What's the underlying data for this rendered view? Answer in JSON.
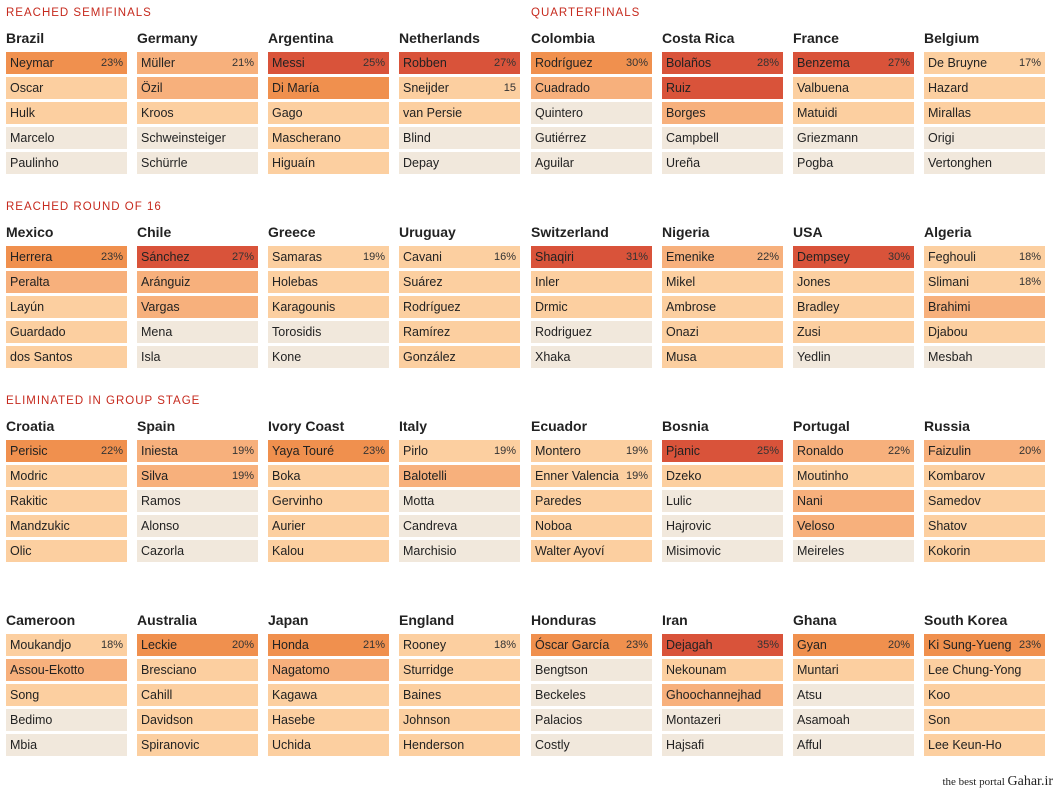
{
  "colors": {
    "h5": "#d9533a",
    "h4": "#f0904e",
    "h3": "#f7b07c",
    "h2": "#fccfa0",
    "h1": "#f1e8dc"
  },
  "sections": [
    {
      "label": "REACHED SEMIFINALS"
    },
    {
      "label": "QUARTERFINALS"
    },
    {
      "label": "REACHED ROUND OF 16"
    },
    {
      "label": "ELIMINATED IN GROUP STAGE"
    }
  ],
  "rows": [
    [
      {
        "name": "Brazil",
        "players": [
          {
            "name": "Neymar",
            "pct": "23%",
            "heat": "h4"
          },
          {
            "name": "Oscar",
            "pct": "",
            "heat": "h2"
          },
          {
            "name": "Hulk",
            "pct": "",
            "heat": "h2"
          },
          {
            "name": "Marcelo",
            "pct": "",
            "heat": "h1"
          },
          {
            "name": "Paulinho",
            "pct": "",
            "heat": "h1"
          }
        ]
      },
      {
        "name": "Germany",
        "players": [
          {
            "name": "Müller",
            "pct": "21%",
            "heat": "h3"
          },
          {
            "name": "Özil",
            "pct": "",
            "heat": "h3"
          },
          {
            "name": "Kroos",
            "pct": "",
            "heat": "h2"
          },
          {
            "name": "Schweinsteiger",
            "pct": "",
            "heat": "h1"
          },
          {
            "name": "Schürrle",
            "pct": "",
            "heat": "h1"
          }
        ]
      },
      {
        "name": "Argentina",
        "players": [
          {
            "name": "Messi",
            "pct": "25%",
            "heat": "h5"
          },
          {
            "name": "Di María",
            "pct": "",
            "heat": "h4"
          },
          {
            "name": "Gago",
            "pct": "",
            "heat": "h2"
          },
          {
            "name": "Mascherano",
            "pct": "",
            "heat": "h2"
          },
          {
            "name": "Higuaín",
            "pct": "",
            "heat": "h2"
          }
        ]
      },
      {
        "name": "Netherlands",
        "players": [
          {
            "name": "Robben",
            "pct": "27%",
            "heat": "h5"
          },
          {
            "name": "Sneijder",
            "pct": "15",
            "heat": "h2"
          },
          {
            "name": "van Persie",
            "pct": "",
            "heat": "h2"
          },
          {
            "name": "Blind",
            "pct": "",
            "heat": "h1"
          },
          {
            "name": "Depay",
            "pct": "",
            "heat": "h1"
          }
        ]
      },
      {
        "name": "Colombia",
        "players": [
          {
            "name": "Rodríguez",
            "pct": "30%",
            "heat": "h4"
          },
          {
            "name": "Cuadrado",
            "pct": "",
            "heat": "h3"
          },
          {
            "name": "Quintero",
            "pct": "",
            "heat": "h1"
          },
          {
            "name": "Gutiérrez",
            "pct": "",
            "heat": "h1"
          },
          {
            "name": "Aguilar",
            "pct": "",
            "heat": "h1"
          }
        ]
      },
      {
        "name": "Costa Rica",
        "players": [
          {
            "name": "Bolaños",
            "pct": "28%",
            "heat": "h5"
          },
          {
            "name": "Ruiz",
            "pct": "",
            "heat": "h5"
          },
          {
            "name": "Borges",
            "pct": "",
            "heat": "h3"
          },
          {
            "name": "Campbell",
            "pct": "",
            "heat": "h1"
          },
          {
            "name": "Ureña",
            "pct": "",
            "heat": "h1"
          }
        ]
      },
      {
        "name": "France",
        "players": [
          {
            "name": "Benzema",
            "pct": "27%",
            "heat": "h5"
          },
          {
            "name": "Valbuena",
            "pct": "",
            "heat": "h2"
          },
          {
            "name": "Matuidi",
            "pct": "",
            "heat": "h2"
          },
          {
            "name": "Griezmann",
            "pct": "",
            "heat": "h1"
          },
          {
            "name": "Pogba",
            "pct": "",
            "heat": "h1"
          }
        ]
      },
      {
        "name": "Belgium",
        "players": [
          {
            "name": "De Bruyne",
            "pct": "17%",
            "heat": "h2"
          },
          {
            "name": "Hazard",
            "pct": "",
            "heat": "h2"
          },
          {
            "name": "Mirallas",
            "pct": "",
            "heat": "h2"
          },
          {
            "name": "Origi",
            "pct": "",
            "heat": "h1"
          },
          {
            "name": "Vertonghen",
            "pct": "",
            "heat": "h1"
          }
        ]
      }
    ],
    [
      {
        "name": "Mexico",
        "players": [
          {
            "name": "Herrera",
            "pct": "23%",
            "heat": "h4"
          },
          {
            "name": "Peralta",
            "pct": "",
            "heat": "h3"
          },
          {
            "name": "Layún",
            "pct": "",
            "heat": "h2"
          },
          {
            "name": "Guardado",
            "pct": "",
            "heat": "h2"
          },
          {
            "name": "dos Santos",
            "pct": "",
            "heat": "h2"
          }
        ]
      },
      {
        "name": "Chile",
        "players": [
          {
            "name": "Sánchez",
            "pct": "27%",
            "heat": "h5"
          },
          {
            "name": "Aránguiz",
            "pct": "",
            "heat": "h3"
          },
          {
            "name": "Vargas",
            "pct": "",
            "heat": "h3"
          },
          {
            "name": "Mena",
            "pct": "",
            "heat": "h1"
          },
          {
            "name": "Isla",
            "pct": "",
            "heat": "h1"
          }
        ]
      },
      {
        "name": "Greece",
        "players": [
          {
            "name": "Samaras",
            "pct": "19%",
            "heat": "h2"
          },
          {
            "name": "Holebas",
            "pct": "",
            "heat": "h2"
          },
          {
            "name": "Karagounis",
            "pct": "",
            "heat": "h2"
          },
          {
            "name": "Torosidis",
            "pct": "",
            "heat": "h1"
          },
          {
            "name": "Kone",
            "pct": "",
            "heat": "h1"
          }
        ]
      },
      {
        "name": "Uruguay",
        "players": [
          {
            "name": "Cavani",
            "pct": "16%",
            "heat": "h2"
          },
          {
            "name": "Suárez",
            "pct": "",
            "heat": "h2"
          },
          {
            "name": "Rodríguez",
            "pct": "",
            "heat": "h2"
          },
          {
            "name": "Ramírez",
            "pct": "",
            "heat": "h2"
          },
          {
            "name": "González",
            "pct": "",
            "heat": "h2"
          }
        ]
      },
      {
        "name": "Switzerland",
        "players": [
          {
            "name": "Shaqiri",
            "pct": "31%",
            "heat": "h5"
          },
          {
            "name": "Inler",
            "pct": "",
            "heat": "h2"
          },
          {
            "name": "Drmic",
            "pct": "",
            "heat": "h2"
          },
          {
            "name": "Rodriguez",
            "pct": "",
            "heat": "h1"
          },
          {
            "name": "Xhaka",
            "pct": "",
            "heat": "h1"
          }
        ]
      },
      {
        "name": "Nigeria",
        "players": [
          {
            "name": "Emenike",
            "pct": "22%",
            "heat": "h3"
          },
          {
            "name": "Mikel",
            "pct": "",
            "heat": "h2"
          },
          {
            "name": "Ambrose",
            "pct": "",
            "heat": "h2"
          },
          {
            "name": "Onazi",
            "pct": "",
            "heat": "h2"
          },
          {
            "name": "Musa",
            "pct": "",
            "heat": "h2"
          }
        ]
      },
      {
        "name": "USA",
        "players": [
          {
            "name": "Dempsey",
            "pct": "30%",
            "heat": "h5"
          },
          {
            "name": "Jones",
            "pct": "",
            "heat": "h2"
          },
          {
            "name": "Bradley",
            "pct": "",
            "heat": "h2"
          },
          {
            "name": "Zusi",
            "pct": "",
            "heat": "h2"
          },
          {
            "name": "Yedlin",
            "pct": "",
            "heat": "h1"
          }
        ]
      },
      {
        "name": "Algeria",
        "players": [
          {
            "name": "Feghouli",
            "pct": "18%",
            "heat": "h2"
          },
          {
            "name": "Slimani",
            "pct": "18%",
            "heat": "h2"
          },
          {
            "name": "Brahimi",
            "pct": "",
            "heat": "h3"
          },
          {
            "name": "Djabou",
            "pct": "",
            "heat": "h2"
          },
          {
            "name": "Mesbah",
            "pct": "",
            "heat": "h1"
          }
        ]
      }
    ],
    [
      {
        "name": "Croatia",
        "players": [
          {
            "name": "Perisic",
            "pct": "22%",
            "heat": "h4"
          },
          {
            "name": "Modric",
            "pct": "",
            "heat": "h2"
          },
          {
            "name": "Rakitic",
            "pct": "",
            "heat": "h2"
          },
          {
            "name": "Mandzukic",
            "pct": "",
            "heat": "h2"
          },
          {
            "name": "Olic",
            "pct": "",
            "heat": "h2"
          }
        ]
      },
      {
        "name": "Spain",
        "players": [
          {
            "name": "Iniesta",
            "pct": "19%",
            "heat": "h3"
          },
          {
            "name": "Silva",
            "pct": "19%",
            "heat": "h3"
          },
          {
            "name": "Ramos",
            "pct": "",
            "heat": "h1"
          },
          {
            "name": "Alonso",
            "pct": "",
            "heat": "h1"
          },
          {
            "name": "Cazorla",
            "pct": "",
            "heat": "h1"
          }
        ]
      },
      {
        "name": "Ivory Coast",
        "players": [
          {
            "name": "Yaya Touré",
            "pct": "23%",
            "heat": "h4"
          },
          {
            "name": "Boka",
            "pct": "",
            "heat": "h2"
          },
          {
            "name": "Gervinho",
            "pct": "",
            "heat": "h2"
          },
          {
            "name": "Aurier",
            "pct": "",
            "heat": "h2"
          },
          {
            "name": "Kalou",
            "pct": "",
            "heat": "h2"
          }
        ]
      },
      {
        "name": "Italy",
        "players": [
          {
            "name": "Pirlo",
            "pct": "19%",
            "heat": "h2"
          },
          {
            "name": "Balotelli",
            "pct": "",
            "heat": "h3"
          },
          {
            "name": "Motta",
            "pct": "",
            "heat": "h1"
          },
          {
            "name": "Candreva",
            "pct": "",
            "heat": "h1"
          },
          {
            "name": "Marchisio",
            "pct": "",
            "heat": "h1"
          }
        ]
      },
      {
        "name": "Ecuador",
        "players": [
          {
            "name": "Montero",
            "pct": "19%",
            "heat": "h2"
          },
          {
            "name": "Enner Valencia",
            "pct": "19%",
            "heat": "h2"
          },
          {
            "name": "Paredes",
            "pct": "",
            "heat": "h2"
          },
          {
            "name": "Noboa",
            "pct": "",
            "heat": "h2"
          },
          {
            "name": "Walter Ayoví",
            "pct": "",
            "heat": "h2"
          }
        ]
      },
      {
        "name": "Bosnia",
        "players": [
          {
            "name": "Pjanic",
            "pct": "25%",
            "heat": "h5"
          },
          {
            "name": "Dzeko",
            "pct": "",
            "heat": "h2"
          },
          {
            "name": "Lulic",
            "pct": "",
            "heat": "h1"
          },
          {
            "name": "Hajrovic",
            "pct": "",
            "heat": "h1"
          },
          {
            "name": "Misimovic",
            "pct": "",
            "heat": "h1"
          }
        ]
      },
      {
        "name": "Portugal",
        "players": [
          {
            "name": "Ronaldo",
            "pct": "22%",
            "heat": "h3"
          },
          {
            "name": "Moutinho",
            "pct": "",
            "heat": "h2"
          },
          {
            "name": "Nani",
            "pct": "",
            "heat": "h3"
          },
          {
            "name": "Veloso",
            "pct": "",
            "heat": "h3"
          },
          {
            "name": "Meireles",
            "pct": "",
            "heat": "h1"
          }
        ]
      },
      {
        "name": "Russia",
        "players": [
          {
            "name": "Faizulin",
            "pct": "20%",
            "heat": "h3"
          },
          {
            "name": "Kombarov",
            "pct": "",
            "heat": "h2"
          },
          {
            "name": "Samedov",
            "pct": "",
            "heat": "h2"
          },
          {
            "name": "Shatov",
            "pct": "",
            "heat": "h2"
          },
          {
            "name": "Kokorin",
            "pct": "",
            "heat": "h2"
          }
        ]
      }
    ],
    [
      {
        "name": "Cameroon",
        "players": [
          {
            "name": "Moukandjo",
            "pct": "18%",
            "heat": "h2"
          },
          {
            "name": "Assou-Ekotto",
            "pct": "",
            "heat": "h3"
          },
          {
            "name": "Song",
            "pct": "",
            "heat": "h2"
          },
          {
            "name": "Bedimo",
            "pct": "",
            "heat": "h1"
          },
          {
            "name": "Mbia",
            "pct": "",
            "heat": "h1"
          }
        ]
      },
      {
        "name": "Australia",
        "players": [
          {
            "name": "Leckie",
            "pct": "20%",
            "heat": "h4"
          },
          {
            "name": "Bresciano",
            "pct": "",
            "heat": "h2"
          },
          {
            "name": "Cahill",
            "pct": "",
            "heat": "h2"
          },
          {
            "name": "Davidson",
            "pct": "",
            "heat": "h2"
          },
          {
            "name": "Spiranovic",
            "pct": "",
            "heat": "h2"
          }
        ]
      },
      {
        "name": "Japan",
        "players": [
          {
            "name": "Honda",
            "pct": "21%",
            "heat": "h4"
          },
          {
            "name": "Nagatomo",
            "pct": "",
            "heat": "h3"
          },
          {
            "name": "Kagawa",
            "pct": "",
            "heat": "h2"
          },
          {
            "name": "Hasebe",
            "pct": "",
            "heat": "h2"
          },
          {
            "name": "Uchida",
            "pct": "",
            "heat": "h2"
          }
        ]
      },
      {
        "name": "England",
        "players": [
          {
            "name": "Rooney",
            "pct": "18%",
            "heat": "h2"
          },
          {
            "name": "Sturridge",
            "pct": "",
            "heat": "h2"
          },
          {
            "name": "Baines",
            "pct": "",
            "heat": "h2"
          },
          {
            "name": "Johnson",
            "pct": "",
            "heat": "h2"
          },
          {
            "name": "Henderson",
            "pct": "",
            "heat": "h2"
          }
        ]
      },
      {
        "name": "Honduras",
        "players": [
          {
            "name": "Óscar García",
            "pct": "23%",
            "heat": "h4"
          },
          {
            "name": "Bengtson",
            "pct": "",
            "heat": "h1"
          },
          {
            "name": "Beckeles",
            "pct": "",
            "heat": "h1"
          },
          {
            "name": "Palacios",
            "pct": "",
            "heat": "h1"
          },
          {
            "name": "Costly",
            "pct": "",
            "heat": "h1"
          }
        ]
      },
      {
        "name": "Iran",
        "players": [
          {
            "name": "Dejagah",
            "pct": "35%",
            "heat": "h5"
          },
          {
            "name": "Nekounam",
            "pct": "",
            "heat": "h2"
          },
          {
            "name": "Ghoochannejhad",
            "pct": "",
            "heat": "h3"
          },
          {
            "name": "Montazeri",
            "pct": "",
            "heat": "h1"
          },
          {
            "name": "Hajsafi",
            "pct": "",
            "heat": "h1"
          }
        ]
      },
      {
        "name": "Ghana",
        "players": [
          {
            "name": "Gyan",
            "pct": "20%",
            "heat": "h4"
          },
          {
            "name": "Muntari",
            "pct": "",
            "heat": "h2"
          },
          {
            "name": "Atsu",
            "pct": "",
            "heat": "h1"
          },
          {
            "name": "Asamoah",
            "pct": "",
            "heat": "h1"
          },
          {
            "name": "Afful",
            "pct": "",
            "heat": "h1"
          }
        ]
      },
      {
        "name": "South Korea",
        "players": [
          {
            "name": "Ki Sung-Yueng",
            "pct": "23%",
            "heat": "h4"
          },
          {
            "name": "Lee Chung-Yong",
            "pct": "",
            "heat": "h2"
          },
          {
            "name": "Koo",
            "pct": "",
            "heat": "h2"
          },
          {
            "name": "Son",
            "pct": "",
            "heat": "h2"
          },
          {
            "name": "Lee Keun-Ho",
            "pct": "",
            "heat": "h2"
          }
        ]
      }
    ]
  ],
  "watermark": {
    "tagline": "the best portal",
    "site": "Gahar.ir"
  }
}
